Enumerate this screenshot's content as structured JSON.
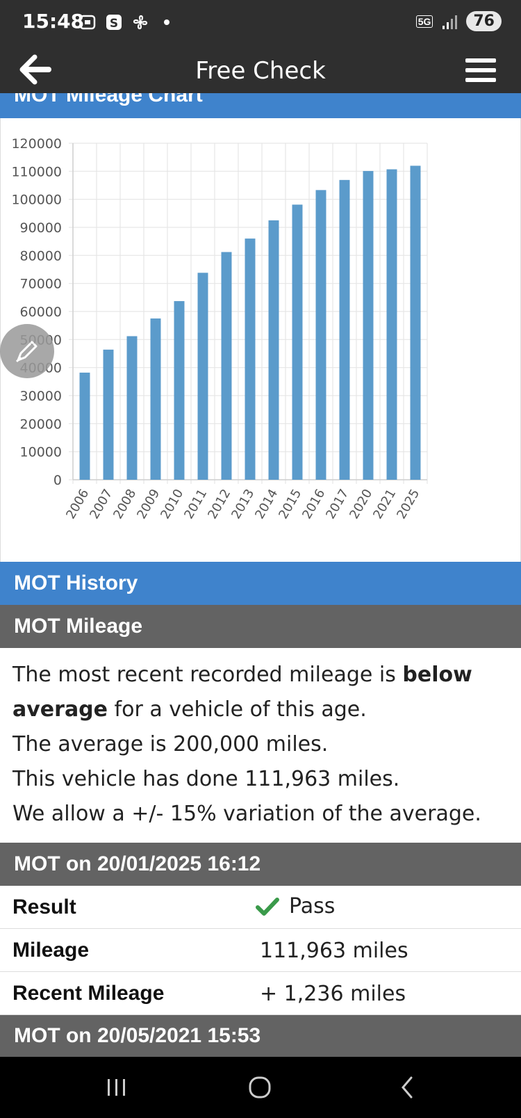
{
  "status_bar": {
    "time": "15:48",
    "network": "5G",
    "battery": "76",
    "icons": [
      "screenshot-icon",
      "s-app-icon",
      "fan-icon",
      "dot-icon",
      "signal-icon"
    ]
  },
  "app_bar": {
    "title": "Free Check",
    "back_icon": "arrow-left-icon",
    "menu_icon": "hamburger-menu-icon"
  },
  "chart_section": {
    "title": "MOT Mileage Chart"
  },
  "chart_data": {
    "type": "bar",
    "title": "",
    "xlabel": "",
    "ylabel": "",
    "categories": [
      "2006",
      "2007",
      "2008",
      "2009",
      "2010",
      "2011",
      "2012",
      "2013",
      "2014",
      "2015",
      "2016",
      "2017",
      "2020",
      "2021",
      "2025"
    ],
    "values": [
      38200,
      46400,
      51200,
      57500,
      63700,
      73800,
      81200,
      86000,
      92500,
      98100,
      103300,
      106900,
      110100,
      110700,
      111963
    ],
    "ylim": [
      0,
      120000
    ],
    "yticks": [
      "0",
      "10000",
      "20000",
      "30000",
      "40000",
      "50000",
      "60000",
      "70000",
      "80000",
      "90000",
      "100000",
      "110000",
      "120000"
    ],
    "grid": true,
    "bar_color": "#5b9bcb"
  },
  "history": {
    "title": "MOT History"
  },
  "mot_mileage": {
    "title": "MOT Mileage",
    "line1_pre": "The most recent recorded mileage is ",
    "line1_bold": "below average",
    "line1_post": " for a vehicle of this age.",
    "line2": "The average is 200,000 miles.",
    "line3": "This vehicle has done 111,963 miles.",
    "line4": "We allow a +/- 15% variation of the average."
  },
  "mot_tests": [
    {
      "title": "MOT on 20/01/2025 16:12",
      "result_label": "Result",
      "result_value": "Pass",
      "result_icon": "check-icon",
      "mileage_label": "Mileage",
      "mileage_value": "111,963 miles",
      "recent_label": "Recent Mileage",
      "recent_value": "+ 1,236 miles"
    },
    {
      "title": "MOT on 20/05/2021 15:53"
    }
  ],
  "nav_bar": {
    "buttons": [
      "recent-apps-icon",
      "home-icon",
      "back-icon"
    ]
  },
  "colors": {
    "header_dark": "#2f2f2f",
    "section_blue": "#3f83cc",
    "section_gray": "#636363",
    "pass_green": "#3a9a4a"
  }
}
